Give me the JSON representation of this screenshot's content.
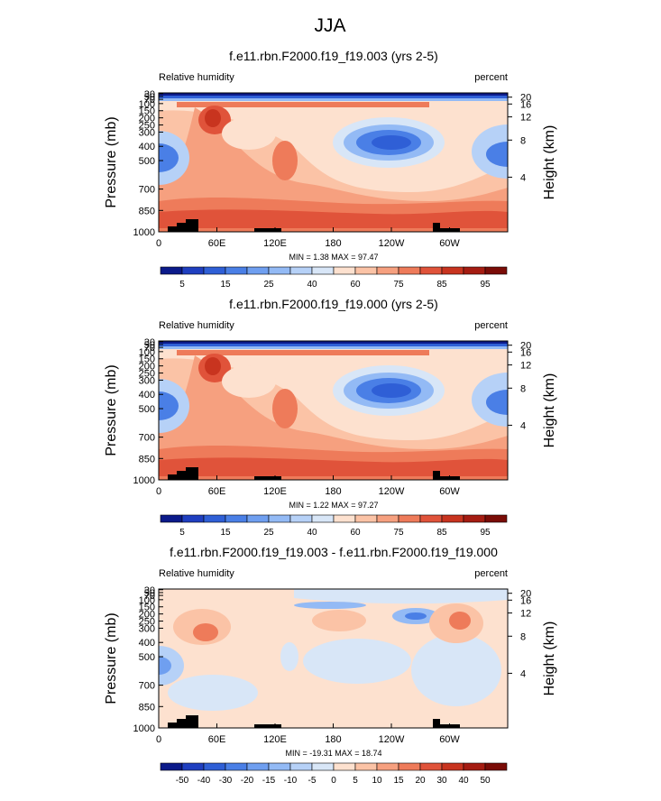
{
  "title": "JJA",
  "chart_data": [
    {
      "type": "contour",
      "title": "f.e11.rbn.F2000.f19_f19.003 (yrs 2-5)",
      "left_label": "Relative humidity",
      "right_label": "percent",
      "ylabel": "Pressure (mb)",
      "y2label": "Height (km)",
      "xlim": [
        0,
        360
      ],
      "xticks": [
        0,
        {
          "value": 60,
          "label": "60E"
        },
        {
          "value": 120,
          "label": "120E"
        },
        180,
        {
          "value": 240,
          "label": "120W"
        },
        {
          "value": 300,
          "label": "60W"
        }
      ],
      "ylim": [
        1000,
        25
      ],
      "yticks": [
        1000,
        850,
        700,
        500,
        400,
        300,
        250,
        200,
        150,
        100,
        70,
        50,
        30
      ],
      "y2ticks": [
        4,
        8,
        12,
        16,
        20
      ],
      "min_label": "MIN =",
      "min": 1.38,
      "max_label": "MAX =",
      "max": 97.47,
      "levels": [
        5,
        10,
        15,
        20,
        25,
        30,
        40,
        50,
        60,
        70,
        75,
        80,
        85,
        90,
        95
      ],
      "label_every": 2,
      "colors": [
        "#0b1a8a",
        "#1f3fc0",
        "#2f5fd6",
        "#4a7fe6",
        "#6f9ff0",
        "#93baf5",
        "#b6d1f7",
        "#d8e6f7",
        "#fde1cf",
        "#fbc3a6",
        "#f6a07f",
        "#ee7b5a",
        "#e0533a",
        "#c8341f",
        "#a51c12",
        "#7a0c07"
      ]
    },
    {
      "type": "contour",
      "title": "f.e11.rbn.F2000.f19_f19.000 (yrs 2-5)",
      "left_label": "Relative humidity",
      "right_label": "percent",
      "ylabel": "Pressure (mb)",
      "y2label": "Height (km)",
      "xlim": [
        0,
        360
      ],
      "xticks": [
        0,
        {
          "value": 60,
          "label": "60E"
        },
        {
          "value": 120,
          "label": "120E"
        },
        180,
        {
          "value": 240,
          "label": "120W"
        },
        {
          "value": 300,
          "label": "60W"
        }
      ],
      "ylim": [
        1000,
        25
      ],
      "yticks": [
        1000,
        850,
        700,
        500,
        400,
        300,
        250,
        200,
        150,
        100,
        70,
        50,
        30
      ],
      "y2ticks": [
        4,
        8,
        12,
        16,
        20
      ],
      "min_label": "MIN =",
      "min": 1.22,
      "max_label": "MAX =",
      "max": 97.27,
      "levels": [
        5,
        10,
        15,
        20,
        25,
        30,
        40,
        50,
        60,
        70,
        75,
        80,
        85,
        90,
        95
      ],
      "label_every": 2,
      "colors": [
        "#0b1a8a",
        "#1f3fc0",
        "#2f5fd6",
        "#4a7fe6",
        "#6f9ff0",
        "#93baf5",
        "#b6d1f7",
        "#d8e6f7",
        "#fde1cf",
        "#fbc3a6",
        "#f6a07f",
        "#ee7b5a",
        "#e0533a",
        "#c8341f",
        "#a51c12",
        "#7a0c07"
      ]
    },
    {
      "type": "contour",
      "title": "f.e11.rbn.F2000.f19_f19.003 - f.e11.rbn.F2000.f19_f19.000",
      "left_label": "Relative humidity",
      "right_label": "percent",
      "ylabel": "Pressure (mb)",
      "y2label": "Height (km)",
      "xlim": [
        0,
        360
      ],
      "xticks": [
        0,
        {
          "value": 60,
          "label": "60E"
        },
        {
          "value": 120,
          "label": "120E"
        },
        180,
        {
          "value": 240,
          "label": "120W"
        },
        {
          "value": 300,
          "label": "60W"
        }
      ],
      "ylim": [
        1000,
        25
      ],
      "yticks": [
        1000,
        850,
        700,
        500,
        400,
        300,
        250,
        200,
        150,
        100,
        70,
        50,
        30
      ],
      "y2ticks": [
        4,
        8,
        12,
        16,
        20
      ],
      "min_label": "MIN =",
      "min": -19.31,
      "max_label": "MAX =",
      "max": 18.74,
      "levels": [
        -50,
        -40,
        -30,
        -20,
        -15,
        -10,
        -5,
        0,
        5,
        10,
        15,
        20,
        30,
        40,
        50
      ],
      "label_every": 1,
      "colors": [
        "#0b1a8a",
        "#1f3fc0",
        "#2f5fd6",
        "#4a7fe6",
        "#6f9ff0",
        "#93baf5",
        "#b6d1f7",
        "#d8e6f7",
        "#fde1cf",
        "#fbc3a6",
        "#f6a07f",
        "#ee7b5a",
        "#e0533a",
        "#c8341f",
        "#a51c12",
        "#7a0c07"
      ]
    }
  ]
}
